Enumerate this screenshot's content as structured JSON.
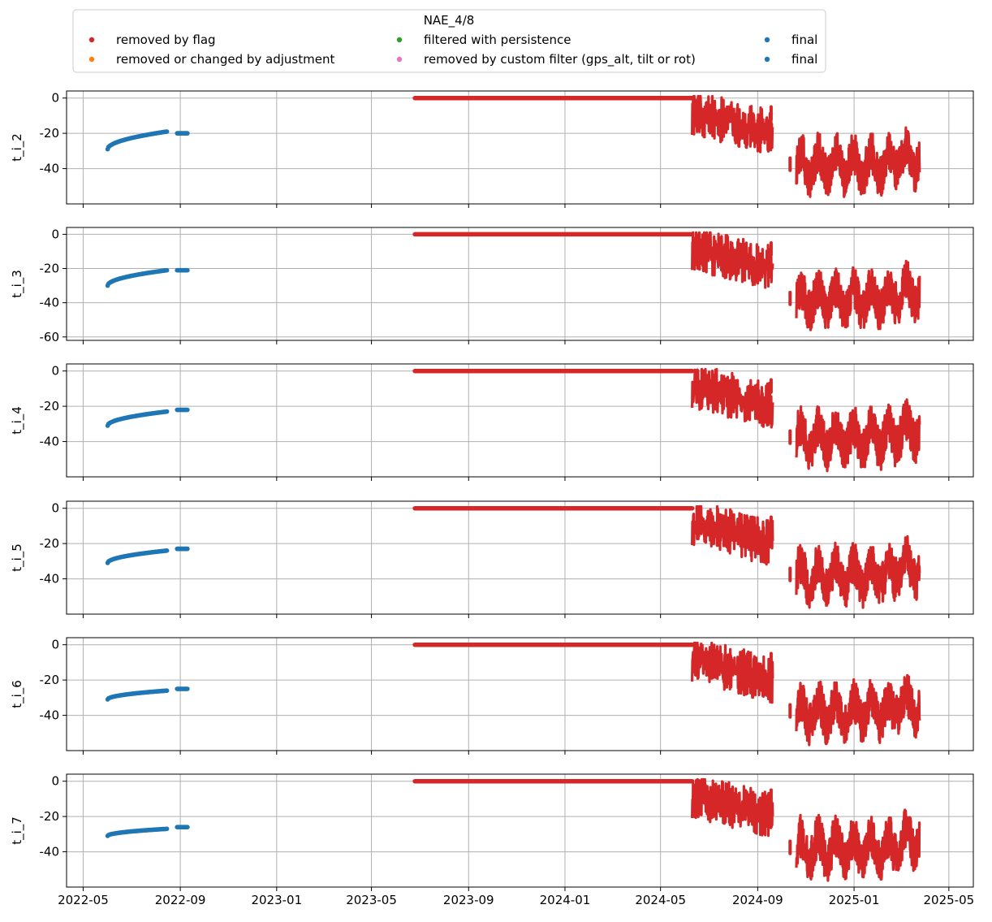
{
  "chart_data": {
    "type": "scatter",
    "legend": {
      "title": "NAE_4/8",
      "placement": "top-center",
      "entries": [
        {
          "label": "removed by flag",
          "color": "#d62728"
        },
        {
          "label": "removed or changed by adjustment",
          "color": "#ff7f0e"
        },
        {
          "label": "filtered with persistence",
          "color": "#2ca02c"
        },
        {
          "label": "removed by custom filter (gps_alt, tilt or rot)",
          "color": "#e377c2"
        },
        {
          "label": "final",
          "color": "#1f77b4"
        },
        {
          "label": "final",
          "color": "#1f77b4"
        }
      ]
    },
    "x_ticks": [
      "2022-05",
      "2022-09",
      "2023-01",
      "2023-05",
      "2023-09",
      "2024-01",
      "2024-05",
      "2024-09",
      "2025-01",
      "2025-05"
    ],
    "grid": true,
    "colors": {
      "flag": "#d62728",
      "final": "#1f77b4"
    },
    "panels": [
      {
        "ylabel": "t_i_2",
        "yticks": [
          "0",
          "-20",
          "-40"
        ],
        "ylim": [
          -60,
          4
        ],
        "final_start": -29,
        "final_end": -19,
        "late_final": -20
      },
      {
        "ylabel": "t_i_3",
        "yticks": [
          "0",
          "-20",
          "-40",
          "-60"
        ],
        "ylim": [
          -62,
          4
        ],
        "final_start": -30,
        "final_end": -21,
        "late_final": -21
      },
      {
        "ylabel": "t_i_4",
        "yticks": [
          "0",
          "-20",
          "-40"
        ],
        "ylim": [
          -60,
          4
        ],
        "final_start": -31,
        "final_end": -23,
        "late_final": -22
      },
      {
        "ylabel": "t_i_5",
        "yticks": [
          "0",
          "-20",
          "-40"
        ],
        "ylim": [
          -60,
          4
        ],
        "final_start": -31,
        "final_end": -24,
        "late_final": -23
      },
      {
        "ylabel": "t_i_6",
        "yticks": [
          "0",
          "-20",
          "-40"
        ],
        "ylim": [
          -60,
          4
        ],
        "final_start": -31,
        "final_end": -26,
        "late_final": -25
      },
      {
        "ylabel": "t_i_7",
        "yticks": [
          "0",
          "-20",
          "-40"
        ],
        "ylim": [
          -60,
          4
        ],
        "final_start": -31,
        "final_end": -27,
        "late_final": -26
      }
    ],
    "series_shape": {
      "final_early": {
        "from": "2022-06-01",
        "to": "2022-08-15"
      },
      "final_late": {
        "from": "2022-08-28",
        "to": "2022-09-10"
      },
      "flag_zero": {
        "from": "2023-06-25",
        "to": "2024-06-10",
        "value": 0
      },
      "flag_summer": {
        "from": "2024-06-10",
        "to": "2024-09-20",
        "start": -8,
        "end": -20
      },
      "flag_winter": {
        "from": "2024-10-20",
        "to": "2025-03-25",
        "mean": -38,
        "spread": 12
      }
    }
  }
}
